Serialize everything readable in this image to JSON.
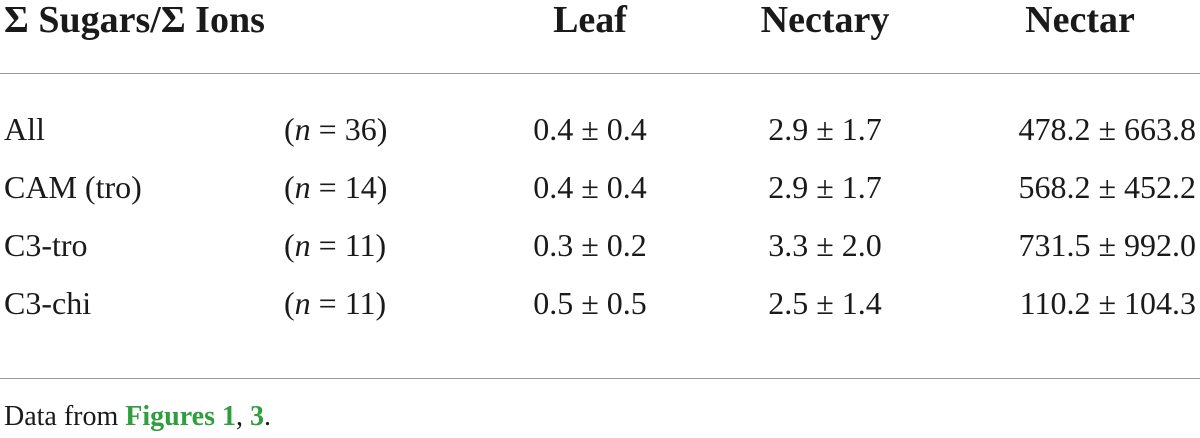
{
  "table": {
    "headers": {
      "group": "Σ Sugars/Σ Ions",
      "leaf": "Leaf",
      "nectary": "Nectary",
      "nectar": "Nectar"
    },
    "rows": [
      {
        "group": "All",
        "n_prefix": "(",
        "n_var": "n",
        "n_rest": " = 36)",
        "leaf": "0.4 ± 0.4",
        "nectary": "2.9 ± 1.7",
        "nectar": "478.2 ± 663.8"
      },
      {
        "group": "CAM (tro)",
        "n_prefix": "(",
        "n_var": "n",
        "n_rest": " = 14)",
        "leaf": "0.4 ± 0.4",
        "nectary": "2.9 ± 1.7",
        "nectar": "568.2 ± 452.2"
      },
      {
        "group": "C3-tro",
        "n_prefix": "(",
        "n_var": "n",
        "n_rest": " = 11)",
        "leaf": "0.3 ± 0.2",
        "nectary": "3.3 ± 2.0",
        "nectar": "731.5 ± 992.0"
      },
      {
        "group": "C3-chi",
        "n_prefix": "(",
        "n_var": "n",
        "n_rest": " = 11)",
        "leaf": "0.5 ± 0.5",
        "nectary": "2.5 ± 1.4",
        "nectar": "110.2 ± 104.3"
      }
    ]
  },
  "footnote": {
    "prefix": "Data from ",
    "link1": "Figures 1",
    "separator": ", ",
    "link2": "3",
    "suffix": "."
  },
  "colors": {
    "link": "#2e9e3e",
    "rule": "#9a9a9a",
    "text": "#1a1a1a"
  }
}
